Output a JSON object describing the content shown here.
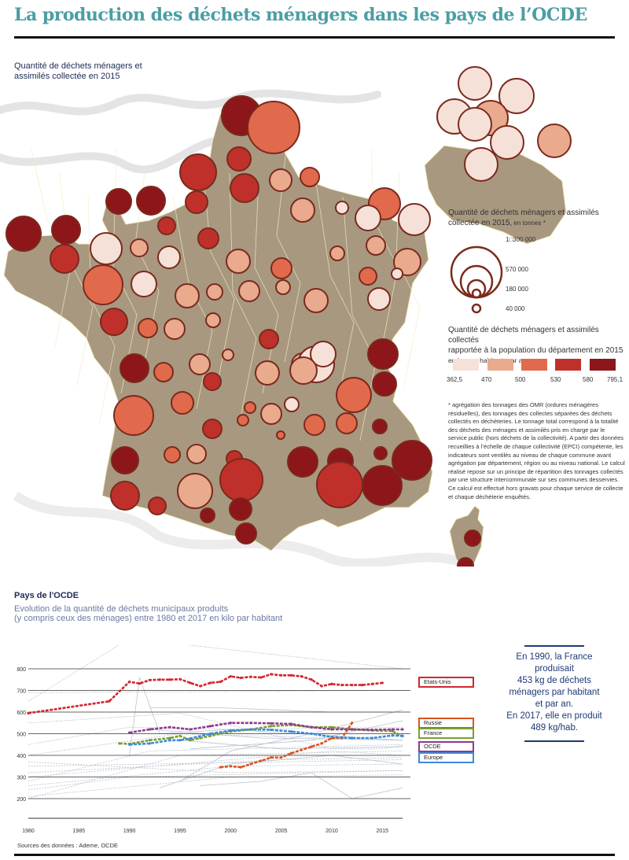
{
  "header": {
    "title": "La production des déchets ménagers dans les pays de l’OCDE"
  },
  "map": {
    "title_line1": "Quantité de déchets ménagers et",
    "title_line2": "assimilés collectée en 2015",
    "fill_land": "#a89880",
    "border_color": "#f2edc0",
    "circle_stroke": "#7a2a1c",
    "size_legend": {
      "title_line1": "Quantité de déchets ménagers et assimilés",
      "title_line2": "collectée en 2015,",
      "title_small": " en tonnes *",
      "entries": [
        {
          "label": "1□300 000",
          "value": 1300000
        },
        {
          "label": "570 000",
          "value": 570000
        },
        {
          "label": "180 000",
          "value": 180000
        },
        {
          "label": "40 000",
          "value": 40000
        }
      ]
    },
    "color_legend": {
      "title_line1": "Quantité de déchets ménagers et assimilés collectés",
      "title_line2": "rapportée à la population du département en 2015",
      "title_line3": "en kg, par habitant, par an",
      "classes": [
        {
          "color": "#f6e1d9"
        },
        {
          "color": "#e9aa8e"
        },
        {
          "color": "#e06a4b"
        },
        {
          "color": "#c0302a"
        },
        {
          "color": "#8c161a"
        }
      ],
      "breaks": [
        "362,5",
        "470",
        "500",
        "530",
        "580",
        "795,1"
      ]
    },
    "note": "* agrégation des tonnages des OMR (ordures ménagères résiduelles), des tonnages des collectes séparées des déchets collectés en déchèteries. Le tonnage total correspond à la totalité des déchets des ménages et assimilés pris en charge par le service public (hors déchets de la collectivité). A partir des données recueillies à l’échelle de chaque collectivité (EPCI) compétente, les indicateurs sont ventilés au niveau de chaque commune avant agrégation par département, région ou au niveau national. Le calcul réalisé repose sur un principe de répartition des tonnages collectés par une structure intercommunale sur ses communes desservies. Ce calcul est effectué hors gravats pour chaque service de collecte et chaque déchèterie enquêtés."
  },
  "chart_data": {
    "type": "line",
    "title": "Pays de l'OCDE",
    "subtitle_line1": "Evolution de la quantité de déchets municipaux produits",
    "subtitle_line2": "(y compris ceux des ménages) entre 1980 et 2017 en kilo par habitant",
    "xlabel": "",
    "ylabel": "",
    "xlim": [
      1980,
      2017
    ],
    "ylim": [
      200,
      800
    ],
    "x_ticks": [
      1980,
      1985,
      1990,
      1995,
      2000,
      2005,
      2010,
      2015
    ],
    "y_ticks": [
      200,
      300,
      400,
      500,
      600,
      700,
      800
    ],
    "grid": true,
    "series": [
      {
        "name": "Etats-Unis",
        "color": "#d2262e",
        "x": [
          1980,
          1988,
          1990,
          1991,
          1992,
          1993,
          1994,
          1995,
          1996,
          1997,
          1998,
          1999,
          2000,
          2001,
          2002,
          2003,
          2004,
          2005,
          2006,
          2007,
          2008,
          2009,
          2010,
          2011,
          2012,
          2013,
          2014,
          2015
        ],
        "values": [
          595,
          650,
          740,
          732,
          748,
          750,
          750,
          752,
          735,
          720,
          735,
          740,
          765,
          758,
          763,
          760,
          775,
          770,
          770,
          765,
          750,
          720,
          730,
          725,
          725,
          725,
          730,
          735
        ]
      },
      {
        "name": "Russie",
        "color": "#d9541e",
        "x": [
          1999,
          2000,
          2001,
          2002,
          2003,
          2004,
          2005,
          2006,
          2007,
          2008,
          2009,
          2010,
          2011,
          2012
        ],
        "values": [
          345,
          350,
          345,
          360,
          375,
          390,
          390,
          410,
          425,
          440,
          455,
          480,
          480,
          550
        ]
      },
      {
        "name": "France",
        "color": "#7aa02e",
        "x": [
          1989,
          1990,
          1992,
          1994,
          1995,
          1996,
          1997,
          1998,
          2000,
          2002,
          2004,
          2006,
          2008,
          2010,
          2012,
          2014,
          2016,
          2017
        ],
        "values": [
          455,
          453,
          470,
          480,
          490,
          470,
          480,
          490,
          510,
          520,
          535,
          540,
          530,
          530,
          520,
          515,
          512,
          489
        ]
      },
      {
        "name": "OCDE",
        "color": "#8e3a90",
        "x": [
          1990,
          1992,
          1994,
          1996,
          1998,
          2000,
          2002,
          2004,
          2006,
          2008,
          2010,
          2012,
          2014,
          2016,
          2017
        ],
        "values": [
          505,
          520,
          530,
          520,
          535,
          550,
          550,
          548,
          545,
          530,
          520,
          520,
          518,
          520,
          520
        ]
      },
      {
        "name": "Europe",
        "color": "#3f8ad8",
        "x": [
          1990,
          1992,
          1994,
          1995,
          1996,
          1998,
          2000,
          2002,
          2004,
          2006,
          2008,
          2010,
          2012,
          2014,
          2016,
          2017
        ],
        "values": [
          450,
          455,
          470,
          470,
          478,
          500,
          515,
          520,
          518,
          510,
          500,
          485,
          480,
          480,
          492,
          490
        ]
      }
    ],
    "background_series_note": "other OECD countries shown as thin grey lines"
  },
  "callout": {
    "lines": [
      "En 1990, la France",
      "produisait",
      "453 kg de déchets",
      "ménagers par habitant",
      "et par an.",
      "En 2017, elle en produit",
      "489 kg/hab."
    ]
  },
  "footer": {
    "source": "Sources des données : Ademe, OCDE"
  }
}
